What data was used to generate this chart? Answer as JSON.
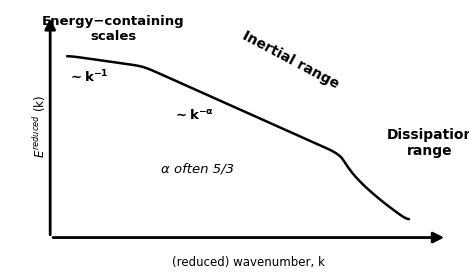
{
  "background_color": "#ffffff",
  "curve_color": "#000000",
  "curve_linewidth": 1.8,
  "arrow_color": "#000000",
  "text_color": "#000000",
  "xlabel": "(reduced) wavenumber, k",
  "label_energy_containing": "Energy−containing\nscales",
  "label_inertial": "Inertial range",
  "label_dissipation": "Dissipation\nrange",
  "label_alpha": "α often 5/3",
  "figsize": [
    4.69,
    2.78
  ],
  "dpi": 100,
  "xlim": [
    0,
    10
  ],
  "ylim": [
    0,
    10
  ],
  "font_size_small": 8.5,
  "font_size_medium": 9.5,
  "font_size_large": 10
}
